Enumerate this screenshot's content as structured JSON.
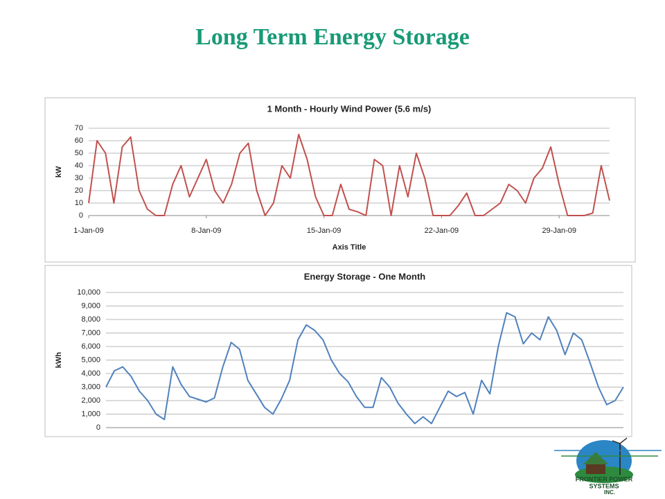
{
  "title": "Long Term Energy Storage",
  "chart_data": [
    {
      "type": "line",
      "title": "1 Month - Hourly Wind Power (5.6 m/s)",
      "x_label": "Axis Title",
      "y_label": "kW",
      "color": "#c0504d",
      "grid": true,
      "x": [
        1,
        1.5,
        2,
        2.5,
        3,
        3.5,
        4,
        4.5,
        5,
        5.5,
        6,
        6.5,
        7,
        7.5,
        8,
        8.5,
        9,
        9.5,
        10,
        10.5,
        11,
        11.5,
        12,
        12.5,
        13,
        13.5,
        14,
        14.5,
        15,
        15.5,
        16,
        16.5,
        17,
        17.5,
        18,
        18.5,
        19,
        19.5,
        20,
        20.5,
        21,
        21.5,
        22,
        22.5,
        23,
        23.5,
        24,
        24.5,
        25,
        25.5,
        26,
        26.5,
        27,
        27.5,
        28,
        28.5,
        29,
        29.5,
        30,
        30.5,
        31,
        31.5,
        32
      ],
      "values": [
        10,
        60,
        50,
        10,
        55,
        63,
        20,
        5,
        0,
        0,
        25,
        40,
        15,
        30,
        45,
        20,
        10,
        25,
        50,
        58,
        20,
        0,
        10,
        40,
        30,
        65,
        45,
        15,
        0,
        0,
        25,
        5,
        3,
        0,
        45,
        40,
        0,
        40,
        15,
        50,
        30,
        0,
        0,
        0,
        8,
        18,
        0,
        0,
        5,
        10,
        25,
        20,
        10,
        30,
        38,
        55,
        25,
        0,
        0,
        0,
        2,
        40,
        12
      ],
      "xlim": [
        1,
        32
      ],
      "xticks": [
        {
          "value": 1,
          "label": "1-Jan-09"
        },
        {
          "value": 8,
          "label": "8-Jan-09"
        },
        {
          "value": 15,
          "label": "15-Jan-09"
        },
        {
          "value": 22,
          "label": "22-Jan-09"
        },
        {
          "value": 29,
          "label": "29-Jan-09"
        }
      ],
      "ylim": [
        0,
        70
      ],
      "yticks": [
        0,
        10,
        20,
        30,
        40,
        50,
        60,
        70
      ]
    },
    {
      "type": "line",
      "title": "Energy Storage - One Month",
      "y_label": "kWh",
      "color": "#4f81bd",
      "grid": true,
      "x": [
        1,
        1.5,
        2,
        2.5,
        3,
        3.5,
        4,
        4.5,
        5,
        5.5,
        6,
        6.5,
        7,
        7.5,
        8,
        8.5,
        9,
        9.5,
        10,
        10.5,
        11,
        11.5,
        12,
        12.5,
        13,
        13.5,
        14,
        14.5,
        15,
        15.5,
        16,
        16.5,
        17,
        17.5,
        18,
        18.5,
        19,
        19.5,
        20,
        20.5,
        21,
        21.5,
        22,
        22.5,
        23,
        23.5,
        24,
        24.5,
        25,
        25.5,
        26,
        26.5,
        27,
        27.5,
        28,
        28.5,
        29,
        29.5,
        30,
        30.5,
        31,
        31.5,
        32
      ],
      "values": [
        3000,
        4200,
        4500,
        3800,
        2700,
        2000,
        1000,
        600,
        4500,
        3200,
        2300,
        2100,
        1900,
        2200,
        4500,
        6300,
        5800,
        3500,
        2500,
        1500,
        1000,
        2100,
        3500,
        6500,
        7600,
        7200,
        6500,
        5000,
        4000,
        3400,
        2300,
        1500,
        1500,
        3700,
        3000,
        1800,
        1000,
        300,
        800,
        300,
        1500,
        2700,
        2300,
        2600,
        1000,
        3500,
        2500,
        6000,
        8500,
        8200,
        6200,
        7000,
        6500,
        8200,
        7200,
        5400,
        7000,
        6500,
        4800,
        3000,
        1700,
        2000,
        3000
      ],
      "xlim": [
        1,
        32
      ],
      "ylim": [
        0,
        10000
      ],
      "yticks": [
        0,
        {
          "value": 1000,
          "label": "1,000"
        },
        {
          "value": 2000,
          "label": "2,000"
        },
        {
          "value": 3000,
          "label": "3,000"
        },
        {
          "value": 4000,
          "label": "4,000"
        },
        {
          "value": 5000,
          "label": "5,000"
        },
        {
          "value": 6000,
          "label": "6,000"
        },
        {
          "value": 7000,
          "label": "7,000"
        },
        {
          "value": 8000,
          "label": "8,000"
        },
        {
          "value": 9000,
          "label": "9,000"
        },
        {
          "value": 10000,
          "label": "10,000"
        }
      ]
    }
  ],
  "logo": {
    "line1": "FRONTIER POWER",
    "line2": "SYSTEMS",
    "line3": "INC."
  }
}
